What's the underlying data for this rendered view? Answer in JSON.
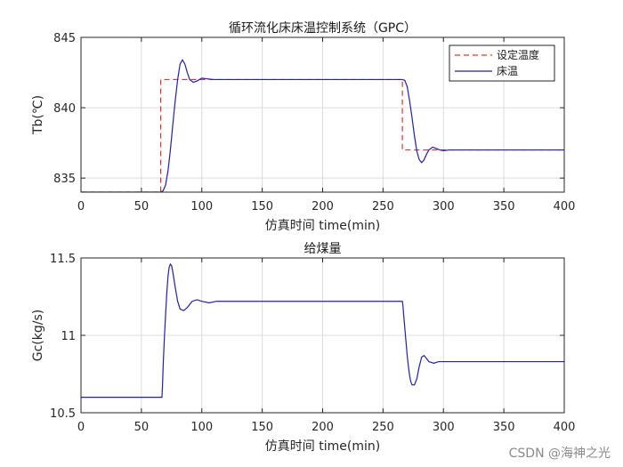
{
  "chart_data": [
    {
      "type": "line",
      "title": "循环流化床床温控制系统（GPC）",
      "xlabel": "仿真时间 time(min)",
      "ylabel": "Tb(℃)",
      "xlim": [
        0,
        400
      ],
      "ylim": [
        834,
        845
      ],
      "xticks": [
        0,
        50,
        100,
        150,
        200,
        250,
        300,
        350,
        400
      ],
      "yticks": [
        835,
        840,
        845
      ],
      "grid": true,
      "legend_position": "top-right",
      "series": [
        {
          "name": "设定温度",
          "style": "dashed",
          "color": "#e8312b",
          "x": [
            0,
            66,
            66,
            266,
            266,
            400
          ],
          "y": [
            834,
            834,
            842,
            842,
            837,
            837
          ]
        },
        {
          "name": "床温",
          "style": "solid",
          "color": "#1f1fb4",
          "x": [
            0,
            66,
            68,
            70,
            72,
            74,
            76,
            78,
            80,
            82,
            84,
            86,
            88,
            90,
            93,
            96,
            100,
            105,
            110,
            120,
            266,
            268,
            270,
            272,
            274,
            276,
            278,
            280,
            282,
            284,
            286,
            288,
            291,
            294,
            297,
            300,
            305,
            400
          ],
          "y": [
            834,
            834,
            834.1,
            834.5,
            835.5,
            837.0,
            838.8,
            840.5,
            842.0,
            843.1,
            843.4,
            843.1,
            842.5,
            842.0,
            841.8,
            841.9,
            842.1,
            842.05,
            842.0,
            842.0,
            842.0,
            841.95,
            841.5,
            840.5,
            839.3,
            838.0,
            836.9,
            836.3,
            836.1,
            836.3,
            836.7,
            837.0,
            837.2,
            837.1,
            837.0,
            836.95,
            837.0,
            837.0
          ]
        }
      ]
    },
    {
      "type": "line",
      "title": "给煤量",
      "xlabel": "仿真时间 time(min)",
      "ylabel": "Gc(kg/s)",
      "xlim": [
        0,
        400
      ],
      "ylim": [
        10.5,
        11.5
      ],
      "xticks": [
        0,
        50,
        100,
        150,
        200,
        250,
        300,
        350,
        400
      ],
      "yticks": [
        10.5,
        11,
        11.5
      ],
      "ytick_labels": [
        "10.5",
        "11",
        "11.5"
      ],
      "grid": true,
      "series": [
        {
          "style": "solid",
          "color": "#1f1fb4",
          "x": [
            0,
            67,
            67.5,
            68,
            69,
            70,
            71,
            72,
            73,
            74,
            75,
            76,
            77,
            78,
            80,
            82,
            85,
            88,
            92,
            96,
            100,
            106,
            112,
            120,
            266,
            266.5,
            267,
            268,
            269,
            270,
            271,
            272,
            273,
            274,
            276,
            278,
            280,
            282,
            284,
            286,
            288,
            292,
            296,
            300,
            306,
            400
          ],
          "y": [
            10.6,
            10.6,
            10.68,
            10.8,
            10.98,
            11.13,
            11.27,
            11.38,
            11.44,
            11.46,
            11.45,
            11.41,
            11.36,
            11.31,
            11.22,
            11.17,
            11.16,
            11.18,
            11.22,
            11.23,
            11.22,
            11.21,
            11.22,
            11.22,
            11.22,
            11.19,
            11.14,
            11.05,
            10.96,
            10.87,
            10.8,
            10.74,
            10.7,
            10.68,
            10.68,
            10.72,
            10.8,
            10.86,
            10.87,
            10.85,
            10.83,
            10.82,
            10.83,
            10.83,
            10.83,
            10.83
          ]
        }
      ]
    }
  ],
  "watermark": "CSDN @海神之光"
}
